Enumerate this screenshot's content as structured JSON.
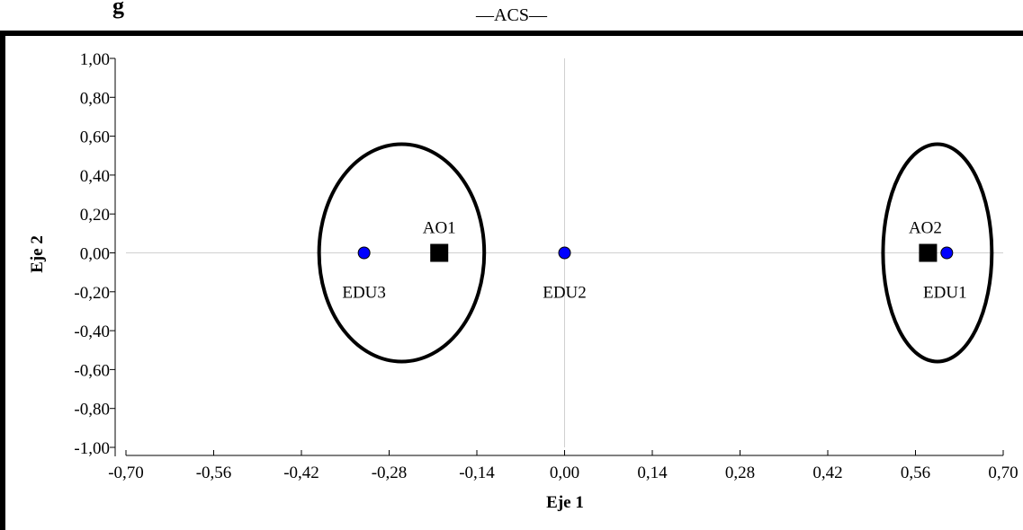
{
  "page": {
    "title_partial": "g"
  },
  "chart_data": {
    "type": "scatter",
    "title": "—ACS—",
    "xlabel": "Eje 1",
    "ylabel": "Eje 2",
    "xlim": [
      -0.7,
      0.7
    ],
    "ylim": [
      -1.0,
      1.0
    ],
    "xticks": [
      "-0,70",
      "-0,56",
      "-0,42",
      "-0,28",
      "-0,14",
      "0,00",
      "0,14",
      "0,28",
      "0,42",
      "0,56",
      "0,70"
    ],
    "yticks": [
      "1,00",
      "0,80",
      "0,60",
      "0,40",
      "0,20",
      "0,00",
      "-0,20",
      "-0,40",
      "-0,60",
      "-0,80",
      "-1,00"
    ],
    "grid": "zero lines only",
    "series": [
      {
        "marker": "circle",
        "color": "#0000ff",
        "points": [
          {
            "label": "EDU1",
            "x": 0.61,
            "y": 0.0
          },
          {
            "label": "EDU2",
            "x": 0.0,
            "y": 0.0
          },
          {
            "label": "EDU3",
            "x": -0.32,
            "y": 0.0
          }
        ]
      },
      {
        "marker": "square",
        "color": "#000000",
        "points": [
          {
            "label": "AO1",
            "x": -0.2,
            "y": 0.0
          },
          {
            "label": "AO2",
            "x": 0.58,
            "y": 0.0
          }
        ]
      }
    ],
    "groupings": [
      {
        "shape": "ellipse",
        "members": [
          "EDU3",
          "AO1"
        ]
      },
      {
        "shape": "ellipse",
        "members": [
          "AO2",
          "EDU1"
        ]
      }
    ]
  }
}
